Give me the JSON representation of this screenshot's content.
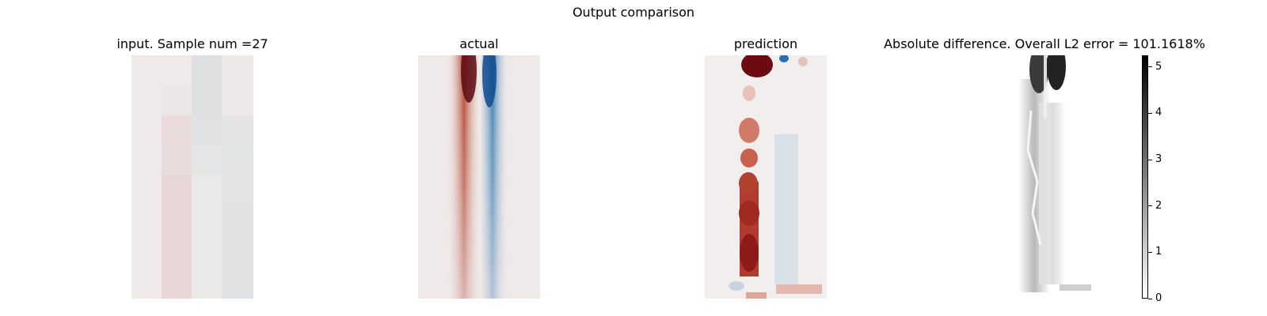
{
  "title": "Output comparison",
  "panels": {
    "input": {
      "title": "input. Sample num =27"
    },
    "actual": {
      "title": "actual"
    },
    "prediction": {
      "title": "prediction"
    },
    "difference": {
      "title": "Absolute difference. Overall L2 error = 101.1618%"
    }
  },
  "colorbar": {
    "ticks": [
      "0",
      "1",
      "2",
      "3",
      "4",
      "5"
    ],
    "range": [
      0,
      5.25
    ],
    "colormap": "grayscale reversed (0 white, max black)"
  },
  "chart_data": {
    "type": "heatmap",
    "title": "Output comparison",
    "panel_titles": [
      "input. Sample num =27",
      "actual",
      "prediction",
      "Absolute difference. Overall L2 error = 101.1618%"
    ],
    "colormap_fields": "diverging red-white-blue",
    "colorbar_ticks": [
      0,
      1,
      2,
      3,
      4,
      5
    ],
    "colorbar_range": [
      0,
      5.25
    ],
    "overall_l2_error_percent": 101.1618,
    "sample_num": 27
  }
}
